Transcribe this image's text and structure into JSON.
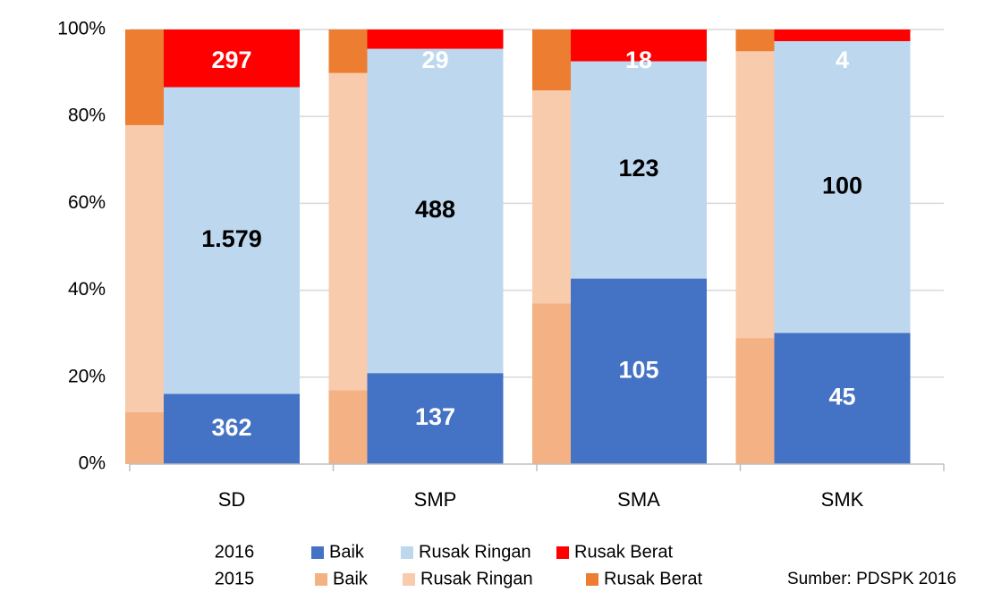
{
  "chart_data": {
    "type": "bar",
    "stacking": "percent",
    "categories": [
      "SD",
      "SMP",
      "SMA",
      "SMK"
    ],
    "ylim": [
      0,
      100
    ],
    "yticks": [
      {
        "value": 0,
        "label": "0%"
      },
      {
        "value": 20,
        "label": "20%"
      },
      {
        "value": 40,
        "label": "40%"
      },
      {
        "value": 60,
        "label": "60%"
      },
      {
        "value": 80,
        "label": "80%"
      },
      {
        "value": 100,
        "label": "100%"
      }
    ],
    "grid": true,
    "groups": [
      {
        "name": "2015",
        "series": [
          {
            "name": "Baik",
            "color": "#f4b183",
            "values": [
              12,
              17,
              37,
              29
            ]
          },
          {
            "name": "Rusak Ringan",
            "color": "#f8cbad",
            "values": [
              66,
              73,
              49,
              66
            ]
          },
          {
            "name": "Rusak Berat",
            "color": "#ed7d31",
            "values": [
              22,
              10,
              14,
              5
            ]
          }
        ]
      },
      {
        "name": "2016",
        "series": [
          {
            "name": "Baik",
            "color": "#4472c4",
            "values": [
              362,
              137,
              105,
              45
            ]
          },
          {
            "name": "Rusak Ringan",
            "color": "#bdd7ee",
            "values": [
              1579,
              488,
              123,
              100
            ],
            "value_labels": [
              "1.579",
              "488",
              "123",
              "100"
            ]
          },
          {
            "name": "Rusak Berat",
            "color": "#ff0000",
            "values": [
              297,
              29,
              18,
              4
            ]
          }
        ]
      }
    ],
    "source": "Sumber: PDSPK 2016"
  }
}
